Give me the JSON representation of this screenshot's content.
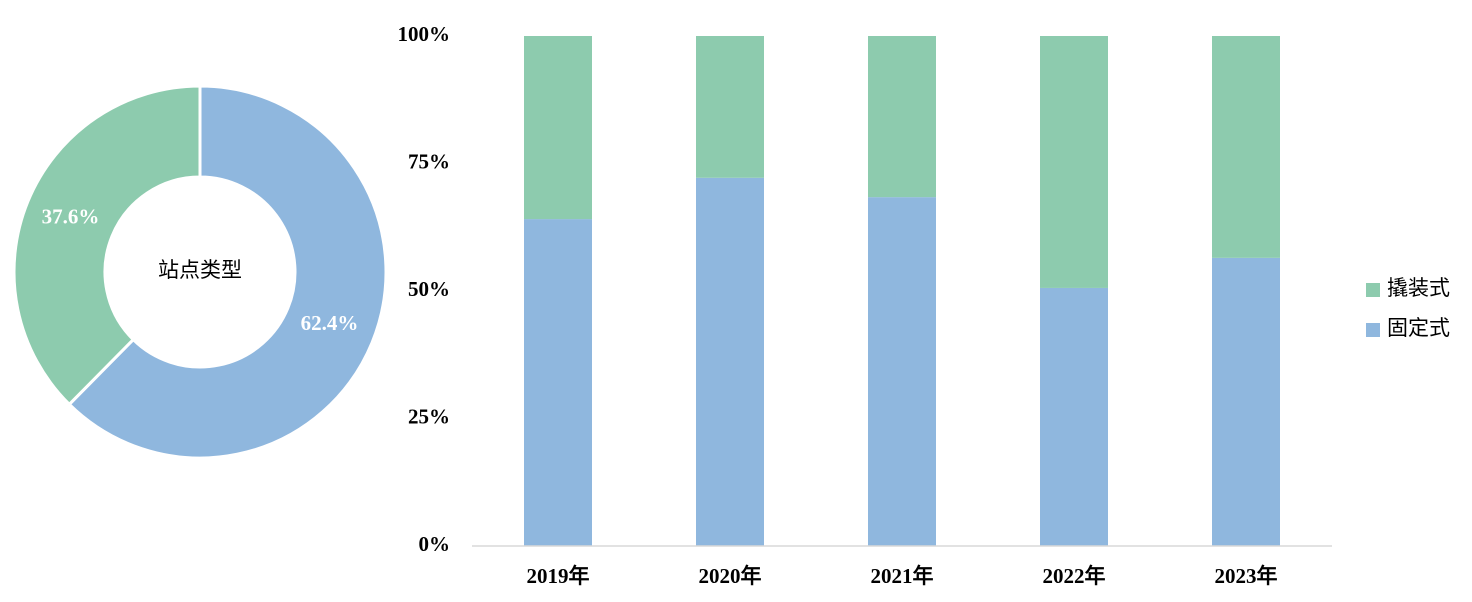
{
  "chart_data": [
    {
      "type": "pie",
      "title": "站点类型",
      "values": [
        62.4,
        37.6
      ],
      "value_labels": [
        "62.4%",
        "37.6%"
      ],
      "colors": [
        "#8fb7de",
        "#8dcbae"
      ]
    },
    {
      "type": "bar",
      "stacked": true,
      "categories": [
        "2019年",
        "2020年",
        "2021年",
        "2022年",
        "2023年"
      ],
      "series": [
        {
          "name": "固定式",
          "color": "#8fb7de",
          "values": [
            64.1,
            72.2,
            68.4,
            50.6,
            56.5
          ]
        },
        {
          "name": "撬装式",
          "color": "#8dcbae",
          "values": [
            35.9,
            27.8,
            31.6,
            49.4,
            43.5
          ]
        }
      ],
      "ylim": [
        0,
        100
      ],
      "yticks": [
        {
          "value": 0,
          "label": "0%"
        },
        {
          "value": 25,
          "label": "25%"
        },
        {
          "value": 50,
          "label": "50%"
        },
        {
          "value": 75,
          "label": "75%"
        },
        {
          "value": 100,
          "label": "100%"
        }
      ],
      "legend": "right"
    }
  ]
}
